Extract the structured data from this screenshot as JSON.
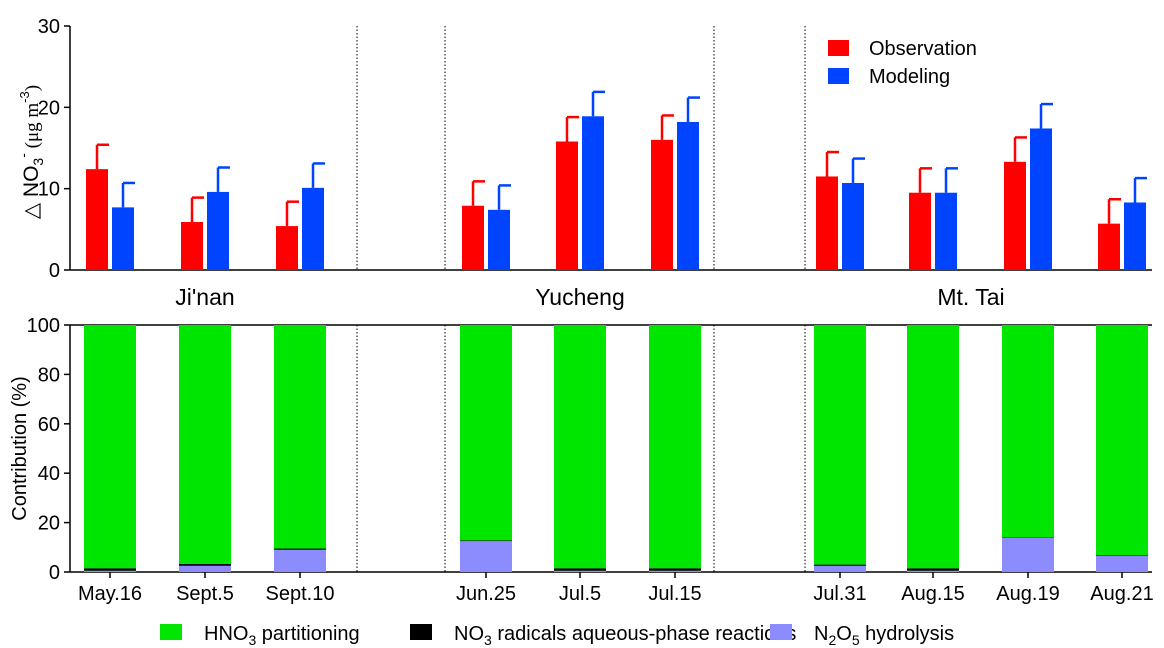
{
  "chart_data": [
    {
      "type": "bar",
      "panel": "top",
      "ylabel_symbol": "△ NO",
      "ylabel_sub": "3",
      "ylabel_sup": "-",
      "ylabel_units": "(μg m",
      "ylabel_units_sup": "-3",
      "ylabel_close": ")",
      "ylim": [
        0,
        30
      ],
      "yticks": [
        0,
        10,
        20,
        30
      ],
      "categories": [
        "May.16",
        "Sept.5",
        "Sept.10",
        "Jun.25",
        "Jul.5",
        "Jul.15",
        "Jul.31",
        "Aug.15",
        "Aug.19",
        "Aug.21"
      ],
      "series": [
        {
          "name": "Observation",
          "color": "#ff0000",
          "values": [
            12.4,
            5.9,
            5.4,
            7.9,
            15.8,
            16.0,
            11.5,
            9.5,
            13.3,
            5.7
          ],
          "errors": [
            3.0,
            3.0,
            3.0,
            3.0,
            3.0,
            3.0,
            3.0,
            3.0,
            3.0,
            3.0
          ]
        },
        {
          "name": "Modeling",
          "color": "#0044ff",
          "values": [
            7.7,
            9.6,
            10.1,
            7.4,
            18.9,
            18.2,
            10.7,
            9.5,
            17.4,
            8.3
          ],
          "errors": [
            3.0,
            3.0,
            3.0,
            3.0,
            3.0,
            3.0,
            3.0,
            3.0,
            3.0,
            3.0
          ]
        }
      ],
      "legend_position": "top-right"
    },
    {
      "type": "bar",
      "stacked": true,
      "panel": "bottom",
      "ylabel": "Contribution (%)",
      "ylim": [
        0,
        100
      ],
      "yticks": [
        0,
        20,
        40,
        60,
        80,
        100
      ],
      "categories": [
        "May.16",
        "Sept.5",
        "Sept.10",
        "Jun.25",
        "Jul.5",
        "Jul.15",
        "Jul.31",
        "Aug.15",
        "Aug.19",
        "Aug.21"
      ],
      "series": [
        {
          "name_main": "N",
          "name_sub1": "2",
          "name_mid": "O",
          "name_sub2": "5",
          "name_tail": " hydrolysis",
          "color": "#8c8cff",
          "values": [
            0.5,
            2.5,
            9.0,
            12.5,
            0.5,
            0.5,
            2.5,
            0.5,
            13.8,
            6.5
          ]
        },
        {
          "name_main": "NO",
          "name_sub1": "3",
          "name_tail": " radicals aqueous-phase reactions",
          "color": "#000000",
          "values": [
            1.0,
            0.8,
            0.5,
            0.3,
            1.0,
            1.0,
            0.5,
            1.0,
            0.2,
            0.3
          ]
        },
        {
          "name_main": "HNO",
          "name_sub1": "3",
          "name_tail": " partitioning",
          "color": "#00e600",
          "values": [
            98.5,
            96.7,
            90.5,
            87.2,
            98.5,
            98.5,
            97.0,
            98.5,
            86.0,
            93.2
          ]
        }
      ],
      "legend_position": "bottom"
    }
  ],
  "groups": [
    {
      "name": "Ji'nan",
      "categories": [
        0,
        1,
        2
      ]
    },
    {
      "name": "Yucheng",
      "categories": [
        3,
        4,
        5
      ]
    },
    {
      "name": "Mt. Tai",
      "categories": [
        6,
        7,
        8,
        9
      ]
    }
  ]
}
